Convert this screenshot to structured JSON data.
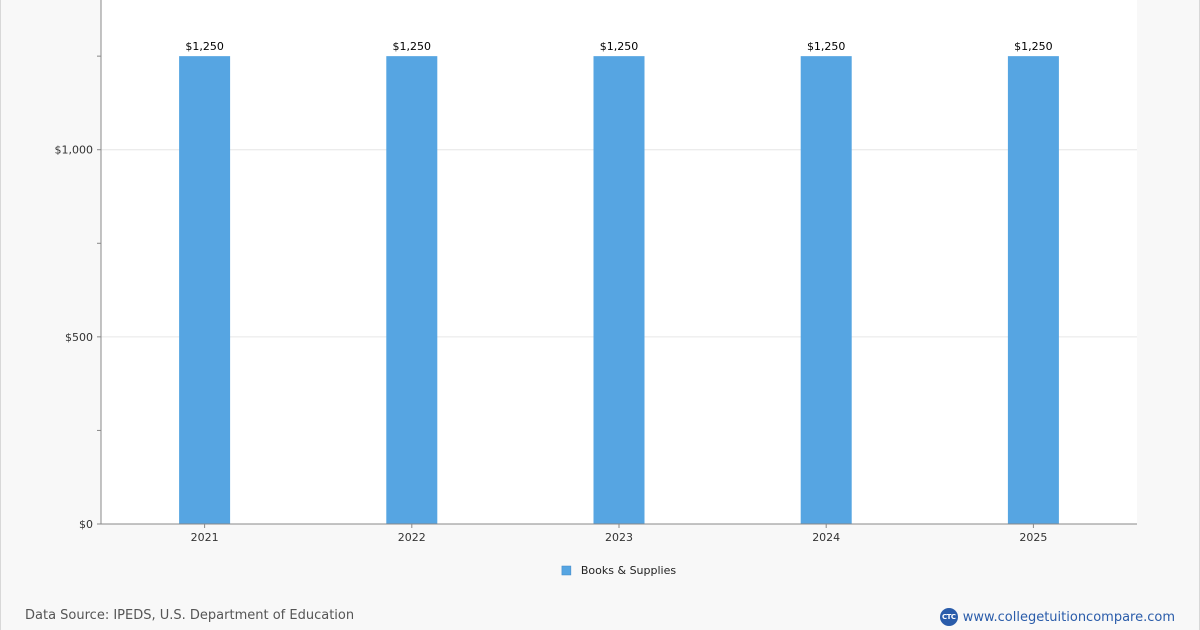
{
  "chart_data": {
    "type": "bar",
    "categories": [
      "2021",
      "2022",
      "2023",
      "2024",
      "2025"
    ],
    "series": [
      {
        "name": "Books & Supplies",
        "values": [
          1250,
          1250,
          1250,
          1250,
          1250
        ],
        "color": "#56a5e2"
      }
    ],
    "data_labels": [
      "$1,250",
      "$1,250",
      "$1,250",
      "$1,250",
      "$1,250"
    ],
    "ylim": [
      0,
      1400
    ],
    "y_ticks": [
      0,
      500,
      1000
    ],
    "y_tick_labels": [
      "$0",
      "$500",
      "$1,000"
    ],
    "y_minor_step": 250,
    "grid": true,
    "legend_position": "bottom-center",
    "title": "",
    "xlabel": "",
    "ylabel": ""
  },
  "footer": {
    "source_text": "Data Source: IPEDS, U.S. Department of Education",
    "brand_logo_text": "CTC",
    "brand_url": "www.collegetuitioncompare.com"
  }
}
